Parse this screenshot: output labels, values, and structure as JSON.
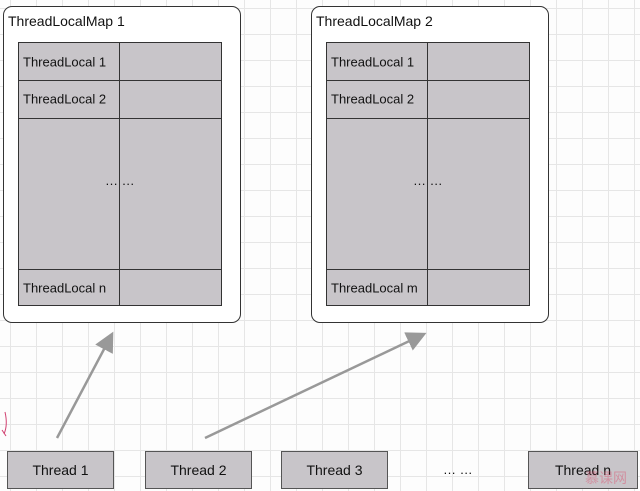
{
  "maps": [
    {
      "title": "ThreadLocalMap 1",
      "rows": [
        "ThreadLocal 1",
        "ThreadLocal 2",
        "ThreadLocal n"
      ],
      "ellipsis": "… …"
    },
    {
      "title": "ThreadLocalMap 2",
      "rows": [
        "ThreadLocal 1",
        "ThreadLocal 2",
        "ThreadLocal m"
      ],
      "ellipsis": "… …"
    }
  ],
  "threads": [
    "Thread 1",
    "Thread 2",
    "Thread 3",
    "Thread n"
  ],
  "threads_ellipsis": "… …",
  "watermark": "慕课网"
}
